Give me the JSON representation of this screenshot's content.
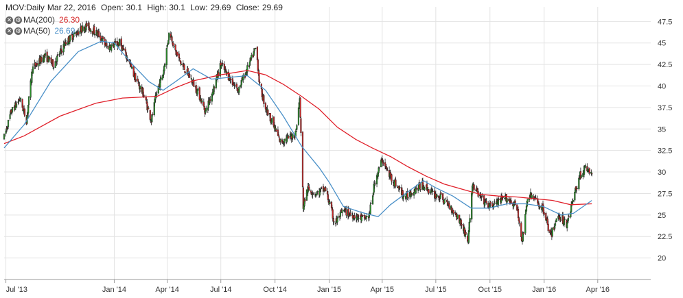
{
  "header": {
    "symbol_period": "MOV:Daily",
    "date": "Mar 22, 2016",
    "open_label": "Open:",
    "open": "30.1",
    "high_label": "High:",
    "high": "30.1",
    "low_label": "Low:",
    "low": "29.69",
    "close_label": "Close:",
    "close": "29.69"
  },
  "ma_rows": [
    {
      "label": "MA(200)",
      "value": "26.30",
      "color": "#d62728"
    },
    {
      "label": "MA(50)",
      "value": "26.69",
      "color": "#4a90c8"
    }
  ],
  "colors": {
    "up": "#2a8c2a",
    "down": "#c62828",
    "ma200": "#e0202a",
    "ma50": "#4a90c8",
    "grid": "#e3e3e3"
  },
  "chart_data": {
    "type": "candlestick",
    "y_ticks": [
      20,
      22.5,
      25,
      27.5,
      30,
      32.5,
      35,
      37.5,
      40,
      42.5,
      45,
      47.5
    ],
    "y_tick_labels": [
      "20",
      "22.5",
      "25",
      "27.5",
      "30",
      "32.5",
      "35",
      "37.5",
      "40",
      "42.5",
      "45",
      "47.5"
    ],
    "ylim": [
      17.5,
      49.2
    ],
    "x_ticks": [
      "2013-07-01",
      "2014-01-01",
      "2014-04-01",
      "2014-07-01",
      "2014-10-01",
      "2015-01-01",
      "2015-04-01",
      "2015-07-01",
      "2015-10-01",
      "2016-01-01",
      "2016-04-01"
    ],
    "x_tick_labels": [
      "Jul '13",
      "Jan '14",
      "Apr '14",
      "Jul '14",
      "Oct '14",
      "Jan '15",
      "Apr '15",
      "Jul '15",
      "Oct '15",
      "Jan '16",
      "Apr '16"
    ],
    "xlim": [
      "2013-06-28",
      "2016-06-30"
    ],
    "grid": true,
    "price_path": [
      [
        "2013-06-28",
        34.0
      ],
      [
        "2013-07-10",
        37.0
      ],
      [
        "2013-07-25",
        38.5
      ],
      [
        "2013-08-05",
        36.0
      ],
      [
        "2013-08-15",
        42.0
      ],
      [
        "2013-09-05",
        43.5
      ],
      [
        "2013-09-20",
        42.5
      ],
      [
        "2013-10-10",
        45.0
      ],
      [
        "2013-10-25",
        46.0
      ],
      [
        "2013-11-15",
        47.0
      ],
      [
        "2013-12-05",
        46.0
      ],
      [
        "2013-12-20",
        44.5
      ],
      [
        "2014-01-10",
        45.0
      ],
      [
        "2014-01-25",
        43.0
      ],
      [
        "2014-02-05",
        41.0
      ],
      [
        "2014-02-20",
        39.0
      ],
      [
        "2014-03-05",
        36.0
      ],
      [
        "2014-03-15",
        39.5
      ],
      [
        "2014-03-25",
        41.5
      ],
      [
        "2014-04-05",
        46.5
      ],
      [
        "2014-04-15",
        44.0
      ],
      [
        "2014-04-25",
        42.5
      ],
      [
        "2014-05-10",
        41.0
      ],
      [
        "2014-05-25",
        39.0
      ],
      [
        "2014-06-05",
        37.0
      ],
      [
        "2014-06-20",
        40.0
      ],
      [
        "2014-07-01",
        42.5
      ],
      [
        "2014-07-15",
        41.0
      ],
      [
        "2014-07-30",
        39.5
      ],
      [
        "2014-08-15",
        42.0
      ],
      [
        "2014-08-30",
        44.5
      ],
      [
        "2014-09-05",
        40.0
      ],
      [
        "2014-09-15",
        37.5
      ],
      [
        "2014-09-25",
        36.0
      ],
      [
        "2014-10-10",
        33.5
      ],
      [
        "2014-10-25",
        34.0
      ],
      [
        "2014-11-05",
        34.5
      ],
      [
        "2014-11-12",
        38.5
      ],
      [
        "2014-11-18",
        26.0
      ],
      [
        "2014-11-25",
        28.0
      ],
      [
        "2014-12-10",
        27.5
      ],
      [
        "2014-12-25",
        28.0
      ],
      [
        "2015-01-01",
        26.5
      ],
      [
        "2015-01-10",
        24.0
      ],
      [
        "2015-01-25",
        25.5
      ],
      [
        "2015-02-10",
        25.0
      ],
      [
        "2015-03-01",
        24.5
      ],
      [
        "2015-03-10",
        25.0
      ],
      [
        "2015-03-20",
        29.0
      ],
      [
        "2015-04-01",
        31.5
      ],
      [
        "2015-04-10",
        30.0
      ],
      [
        "2015-04-25",
        28.5
      ],
      [
        "2015-05-10",
        27.0
      ],
      [
        "2015-05-25",
        28.0
      ],
      [
        "2015-06-10",
        28.5
      ],
      [
        "2015-06-25",
        27.5
      ],
      [
        "2015-07-10",
        27.0
      ],
      [
        "2015-07-25",
        26.0
      ],
      [
        "2015-08-10",
        24.5
      ],
      [
        "2015-08-25",
        22.0
      ],
      [
        "2015-09-01",
        28.5
      ],
      [
        "2015-09-15",
        27.0
      ],
      [
        "2015-09-30",
        26.0
      ],
      [
        "2015-10-15",
        26.5
      ],
      [
        "2015-10-30",
        27.0
      ],
      [
        "2015-11-15",
        26.0
      ],
      [
        "2015-11-25",
        22.0
      ],
      [
        "2015-12-05",
        27.5
      ],
      [
        "2015-12-20",
        26.5
      ],
      [
        "2016-01-01",
        25.5
      ],
      [
        "2016-01-12",
        22.5
      ],
      [
        "2016-01-25",
        25.0
      ],
      [
        "2016-02-08",
        24.0
      ],
      [
        "2016-02-20",
        27.0
      ],
      [
        "2016-03-01",
        29.5
      ],
      [
        "2016-03-12",
        30.5
      ],
      [
        "2016-03-22",
        29.69
      ]
    ],
    "ma200_path": [
      [
        "2013-06-28",
        33.3
      ],
      [
        "2013-08-01",
        34.2
      ],
      [
        "2013-10-01",
        36.5
      ],
      [
        "2013-12-01",
        38.0
      ],
      [
        "2014-01-15",
        38.6
      ],
      [
        "2014-03-15",
        38.8
      ],
      [
        "2014-04-15",
        39.8
      ],
      [
        "2014-05-15",
        40.6
      ],
      [
        "2014-07-01",
        41.3
      ],
      [
        "2014-08-15",
        41.8
      ],
      [
        "2014-09-15",
        41.3
      ],
      [
        "2014-10-15",
        40.2
      ],
      [
        "2014-11-15",
        38.8
      ],
      [
        "2014-12-15",
        37.3
      ],
      [
        "2015-01-15",
        35.2
      ],
      [
        "2015-02-15",
        33.8
      ],
      [
        "2015-03-15",
        32.8
      ],
      [
        "2015-04-15",
        31.8
      ],
      [
        "2015-05-15",
        30.6
      ],
      [
        "2015-06-15",
        29.5
      ],
      [
        "2015-07-15",
        28.6
      ],
      [
        "2015-08-15",
        28.0
      ],
      [
        "2015-09-15",
        27.4
      ],
      [
        "2015-10-15",
        27.2
      ],
      [
        "2015-11-15",
        27.1
      ],
      [
        "2015-12-15",
        26.9
      ],
      [
        "2016-01-15",
        26.7
      ],
      [
        "2016-02-15",
        26.2
      ],
      [
        "2016-03-22",
        26.3
      ]
    ],
    "ma50_path": [
      [
        "2013-06-28",
        32.8
      ],
      [
        "2013-08-01",
        35.5
      ],
      [
        "2013-09-15",
        40.5
      ],
      [
        "2013-11-01",
        44.0
      ],
      [
        "2013-12-10",
        45.2
      ],
      [
        "2014-01-01",
        45.0
      ],
      [
        "2014-02-01",
        42.5
      ],
      [
        "2014-03-01",
        40.5
      ],
      [
        "2014-03-25",
        39.5
      ],
      [
        "2014-04-15",
        40.5
      ],
      [
        "2014-05-15",
        42.0
      ],
      [
        "2014-06-15",
        40.8
      ],
      [
        "2014-07-15",
        41.0
      ],
      [
        "2014-08-15",
        41.2
      ],
      [
        "2014-09-15",
        39.5
      ],
      [
        "2014-10-15",
        36.5
      ],
      [
        "2014-11-15",
        33.0
      ],
      [
        "2014-12-15",
        30.5
      ],
      [
        "2015-01-01",
        28.8
      ],
      [
        "2015-01-25",
        26.0
      ],
      [
        "2015-02-25",
        25.3
      ],
      [
        "2015-03-25",
        24.8
      ],
      [
        "2015-04-15",
        26.2
      ],
      [
        "2015-05-15",
        27.7
      ],
      [
        "2015-06-10",
        29.0
      ],
      [
        "2015-06-30",
        28.2
      ],
      [
        "2015-07-30",
        27.2
      ],
      [
        "2015-08-30",
        25.8
      ],
      [
        "2015-09-30",
        25.8
      ],
      [
        "2015-10-30",
        26.3
      ],
      [
        "2015-11-30",
        26.3
      ],
      [
        "2015-12-30",
        26.0
      ],
      [
        "2016-01-30",
        25.0
      ],
      [
        "2016-02-20",
        25.2
      ],
      [
        "2016-03-22",
        26.69
      ]
    ]
  }
}
